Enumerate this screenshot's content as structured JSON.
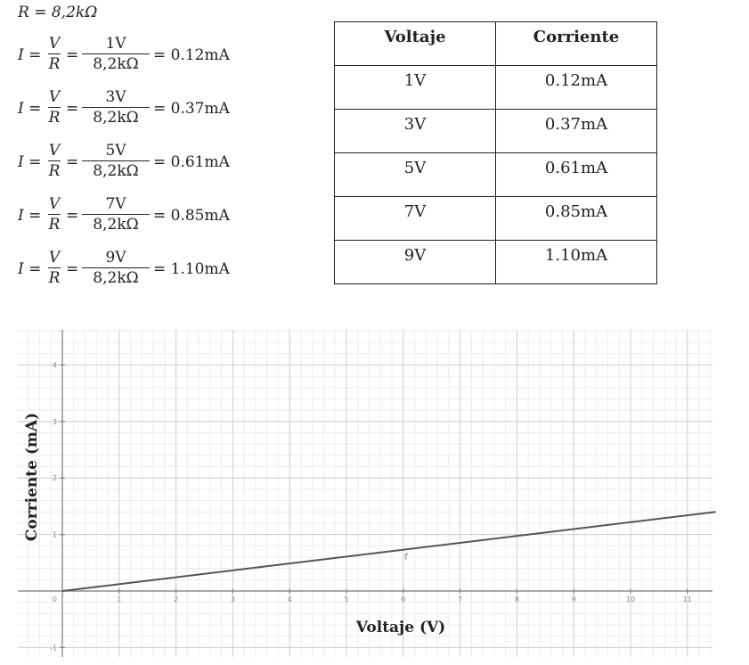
{
  "formulas": {
    "resistance": "R = 8,2kΩ",
    "lhs": "I =",
    "v": "V",
    "r": "R",
    "equals": "=",
    "denominator": "8,2kΩ",
    "rows": [
      {
        "numerator": "1V",
        "result": "= 0.12mA"
      },
      {
        "numerator": "3V",
        "result": "= 0.37mA"
      },
      {
        "numerator": "5V",
        "result": "= 0.61mA"
      },
      {
        "numerator": "7V",
        "result": "= 0.85mA"
      },
      {
        "numerator": "9V",
        "result": "= 1.10mA"
      }
    ]
  },
  "table": {
    "headers": [
      "Voltaje",
      "Corriente"
    ],
    "rows": [
      [
        "1V",
        "0.12mA"
      ],
      [
        "3V",
        "0.37mA"
      ],
      [
        "5V",
        "0.61mA"
      ],
      [
        "7V",
        "0.85mA"
      ],
      [
        "9V",
        "1.10mA"
      ]
    ]
  },
  "chart_data": {
    "type": "line",
    "xlabel": "Voltaje (V)",
    "ylabel": "Corriente (mA)",
    "xlim": [
      -0.8,
      11.5
    ],
    "ylim": [
      -1.1,
      4.6
    ],
    "x_ticks": [
      "1",
      "2",
      "3",
      "4",
      "5",
      "6",
      "7",
      "8",
      "9",
      "10",
      "11"
    ],
    "y_ticks": [
      "-1",
      "1",
      "2",
      "3",
      "4"
    ],
    "origin_label": "0",
    "grid": true,
    "line_color": "#555555",
    "series": [
      {
        "name": "f",
        "x": [
          0,
          11.5
        ],
        "y": [
          0,
          1.4
        ]
      }
    ],
    "annotation": {
      "text": "f",
      "x": 6.05,
      "y": 0.55
    }
  }
}
